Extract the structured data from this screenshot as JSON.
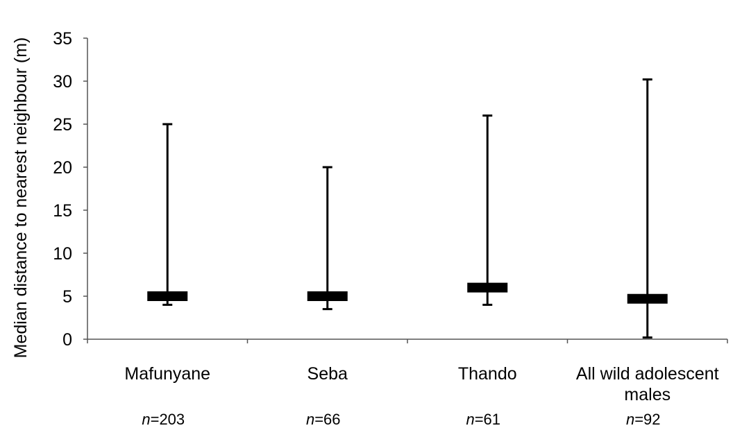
{
  "chart_data": {
    "type": "bar",
    "title": "",
    "xlabel": "",
    "ylabel": "Median distance to nearest neighbour (m)",
    "ylim": [
      0,
      35
    ],
    "yticks": [
      0,
      5,
      10,
      15,
      20,
      25,
      30,
      35
    ],
    "grid": false,
    "categories": [
      "Mafunyane",
      "Seba",
      "Thando",
      "All wild adolescent males"
    ],
    "category_lines": [
      [
        "Mafunyane"
      ],
      [
        "Seba"
      ],
      [
        "Thando"
      ],
      [
        "All wild adolescent",
        "males"
      ]
    ],
    "sample_sizes": [
      "203",
      "66",
      "61",
      "92"
    ],
    "n_prefix": "n",
    "median": [
      5,
      5,
      6,
      4.7
    ],
    "min": [
      4,
      3.5,
      4,
      0.2
    ],
    "max": [
      25,
      20,
      26,
      30.2
    ]
  }
}
